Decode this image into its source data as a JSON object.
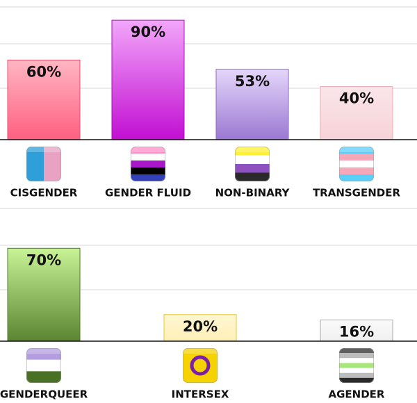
{
  "chart_data": [
    {
      "type": "bar",
      "categories": [
        "CISGENDER",
        "GENDER FLUID",
        "NON-BINARY",
        "TRANSGENDER"
      ],
      "values": [
        60,
        90,
        53,
        40
      ],
      "value_labels": [
        "60%",
        "90%",
        "53%",
        "40%"
      ],
      "ylim": [
        0,
        100
      ],
      "colors": [
        [
          "#ffb6c3",
          "#ff5f80"
        ],
        [
          "#f2a6fa",
          "#c20fd2"
        ],
        [
          "#e4d6fa",
          "#9b78d2"
        ],
        [
          "#fbe6e9",
          "#f6d2d8"
        ]
      ],
      "borders": [
        "#e8506e",
        "#a810b8",
        "#8a66c4",
        "#f0a8b6"
      ],
      "flags": [
        {
          "stripes": [
            "#2e9fd8",
            "#e9a2c3"
          ],
          "vertical": true
        },
        {
          "stripes": [
            "#ff8fc7",
            "#ffffff",
            "#a818c8",
            "#000000",
            "#3340b8"
          ]
        },
        {
          "stripes": [
            "#fff030",
            "#ffffff",
            "#8e52c0",
            "#2a2a2a"
          ]
        },
        {
          "stripes": [
            "#5bcefa",
            "#f5a9b8",
            "#ffffff",
            "#f5a9b8",
            "#5bcefa"
          ]
        }
      ]
    },
    {
      "type": "bar",
      "categories": [
        "GENDERQUEER",
        "INTERSEX",
        "AGENDER"
      ],
      "values": [
        70,
        20,
        16
      ],
      "value_labels": [
        "70%",
        "20%",
        "16%"
      ],
      "ylim": [
        0,
        100
      ],
      "colors": [
        [
          "#c8f396",
          "#5c8532"
        ],
        [
          "#fff7d2",
          "#fff0b8"
        ],
        [
          "#fafafa",
          "#f0f0f0"
        ]
      ],
      "borders": [
        "#4e7a2a",
        "#e8c630",
        "#a8a8a8"
      ],
      "flags": [
        {
          "stripes": [
            "#b59ee0",
            "#ffffff",
            "#4a7026"
          ]
        },
        {
          "stripes": [
            "#f6d200"
          ],
          "ring": "#7a1fa8"
        },
        {
          "stripes": [
            "#2a2a2a",
            "#bcbcbc",
            "#ffffff",
            "#a8e67a",
            "#ffffff",
            "#bcbcbc",
            "#2a2a2a"
          ]
        }
      ]
    }
  ]
}
